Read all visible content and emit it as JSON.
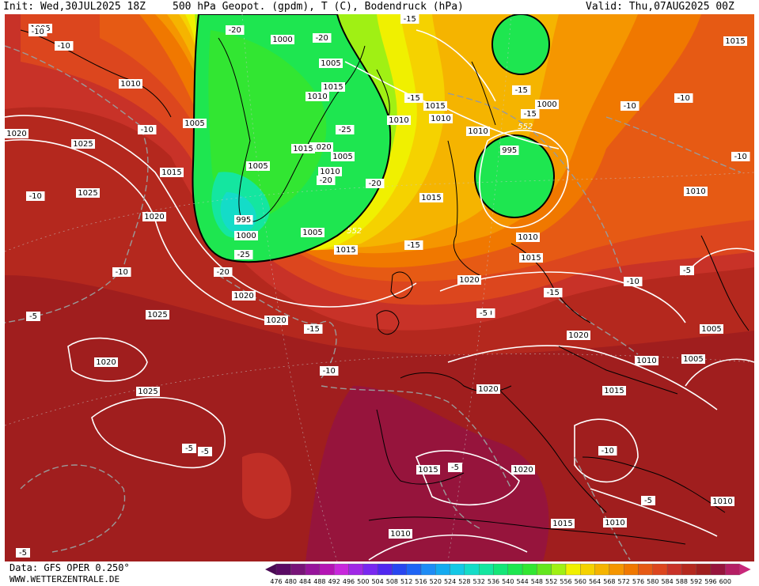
{
  "header": {
    "init": "Init: Wed,30JUL2025 18Z",
    "title": "500 hPa Geopot. (gpdm), T (C), Bodendruck (hPa)",
    "valid": "Valid: Thu,07AUG2025 00Z"
  },
  "footer": {
    "data_source": "Data: GFS OPER 0.250°",
    "website": "WWW.WETTERZENTRALE.DE"
  },
  "legend": {
    "values": [
      "476",
      "480",
      "484",
      "488",
      "492",
      "496",
      "500",
      "504",
      "508",
      "512",
      "516",
      "520",
      "524",
      "528",
      "532",
      "536",
      "540",
      "544",
      "548",
      "552",
      "556",
      "560",
      "564",
      "568",
      "572",
      "576",
      "580",
      "584",
      "588",
      "592",
      "596",
      "600"
    ],
    "colors": [
      "#5a0a64",
      "#781478",
      "#96149b",
      "#b414b4",
      "#c828dc",
      "#a028e6",
      "#7828f0",
      "#5028f0",
      "#2846f0",
      "#1e64f5",
      "#1e8cf5",
      "#14aaf0",
      "#14c8e6",
      "#14dcc8",
      "#14e6a0",
      "#14e678",
      "#1ee650",
      "#32e632",
      "#64e61e",
      "#a0f014",
      "#f0f000",
      "#f5d200",
      "#f5b400",
      "#f59600",
      "#f07800",
      "#e65a14",
      "#dc461e",
      "#c83228",
      "#b4281e",
      "#a01e1e",
      "#96143c",
      "#b41e64"
    ]
  },
  "map_labels": {
    "isobars": [
      {
        "text": "1005"
      },
      {
        "text": "1000"
      },
      {
        "text": "1005"
      },
      {
        "text": "1010"
      },
      {
        "text": "1015"
      },
      {
        "text": "1010"
      },
      {
        "text": "1015"
      },
      {
        "text": "1010"
      },
      {
        "text": "1005"
      },
      {
        "text": "1025"
      },
      {
        "text": "1020"
      },
      {
        "text": "1005"
      },
      {
        "text": "1010"
      },
      {
        "text": "1015"
      },
      {
        "text": "1020"
      },
      {
        "text": "1025"
      },
      {
        "text": "995"
      },
      {
        "text": "1000"
      },
      {
        "text": "1005"
      },
      {
        "text": "1010"
      },
      {
        "text": "1015"
      },
      {
        "text": "1010"
      },
      {
        "text": "1000"
      },
      {
        "text": "1005"
      },
      {
        "text": "995"
      },
      {
        "text": "1015"
      },
      {
        "text": "1010"
      },
      {
        "text": "1015"
      },
      {
        "text": "1020"
      },
      {
        "text": "1015"
      },
      {
        "text": "1025"
      },
      {
        "text": "1020"
      },
      {
        "text": "1020"
      },
      {
        "text": "1020"
      },
      {
        "text": "1025"
      },
      {
        "text": "1020"
      },
      {
        "text": "1020"
      },
      {
        "text": "1010"
      },
      {
        "text": "1015"
      },
      {
        "text": "1005"
      },
      {
        "text": "1005"
      },
      {
        "text": "1010"
      },
      {
        "text": "1020"
      },
      {
        "text": "1020"
      },
      {
        "text": "1015"
      },
      {
        "text": "1015"
      },
      {
        "text": "1010"
      },
      {
        "text": "1010"
      },
      {
        "text": "1015"
      },
      {
        "text": "1010"
      }
    ],
    "temperatures": [
      {
        "text": "-10"
      },
      {
        "text": "-10"
      },
      {
        "text": "-20"
      },
      {
        "text": "-20"
      },
      {
        "text": "-15"
      },
      {
        "text": "-10"
      },
      {
        "text": "-10"
      },
      {
        "text": "-25"
      },
      {
        "text": "-20"
      },
      {
        "text": "-20"
      },
      {
        "text": "-25"
      },
      {
        "text": "-20"
      },
      {
        "text": "-15"
      },
      {
        "text": "-15"
      },
      {
        "text": "-15"
      },
      {
        "text": "-10"
      },
      {
        "text": "-10"
      },
      {
        "text": "-10"
      },
      {
        "text": "-10"
      },
      {
        "text": "-5"
      },
      {
        "text": "-15"
      },
      {
        "text": "-15"
      },
      {
        "text": "-10"
      },
      {
        "text": "-10"
      },
      {
        "text": "-5"
      },
      {
        "text": "-10"
      },
      {
        "text": "-5"
      },
      {
        "text": "-5"
      },
      {
        "text": "-5"
      },
      {
        "text": "-5"
      },
      {
        "text": "-10"
      },
      {
        "text": "-5"
      },
      {
        "text": "-5"
      },
      {
        "text": "-15"
      }
    ],
    "geopotential": [
      {
        "text": "552"
      },
      {
        "text": "552"
      }
    ]
  }
}
